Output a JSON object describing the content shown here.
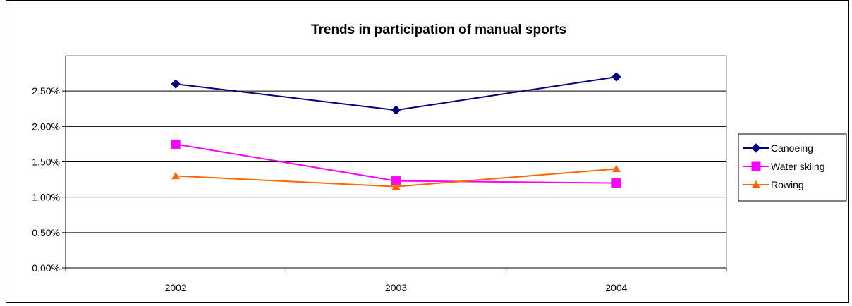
{
  "chart_data": {
    "type": "line",
    "title": "Trends in participation of manual sports",
    "xlabel": "",
    "ylabel": "",
    "categories": [
      "2002",
      "2003",
      "2004"
    ],
    "ylim": [
      0,
      0.03
    ],
    "yticks": [
      0,
      0.005,
      0.01,
      0.015,
      0.02,
      0.025
    ],
    "ytick_labels": [
      "0.00%",
      "0.50%",
      "1.00%",
      "1.50%",
      "2.00%",
      "2.50%"
    ],
    "grid": true,
    "legend_position": "right",
    "series": [
      {
        "name": "Canoeing",
        "values": [
          0.026,
          0.0223,
          0.027
        ],
        "color": "#000080",
        "marker": "diamond"
      },
      {
        "name": "Water skiing",
        "values": [
          0.0175,
          0.0123,
          0.012
        ],
        "color": "#FF00FF",
        "marker": "square"
      },
      {
        "name": "Rowing",
        "values": [
          0.013,
          0.0115,
          0.014
        ],
        "color": "#FF6600",
        "marker": "triangle"
      }
    ]
  }
}
